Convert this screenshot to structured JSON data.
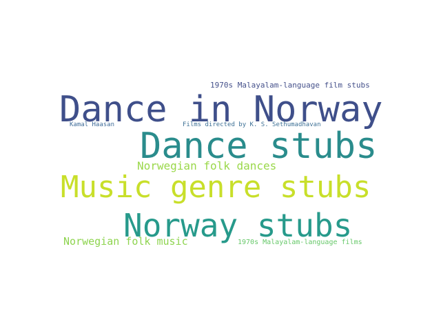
{
  "words": [
    {
      "key": "dance_in_norway",
      "text": "Dance in Norway",
      "color": "#3f4f8a"
    },
    {
      "key": "dance_stubs",
      "text": "Dance stubs",
      "color": "#2a8c8c"
    },
    {
      "key": "music_genre_stubs",
      "text": "Music genre stubs",
      "color": "#c8df2a"
    },
    {
      "key": "norway_stubs",
      "text": "Norway stubs",
      "color": "#279a8b"
    },
    {
      "key": "norwegian_folk_dances",
      "text": "Norwegian folk dances",
      "color": "#9ad84a"
    },
    {
      "key": "norwegian_folk_music",
      "text": "Norwegian folk music",
      "color": "#8ed44f"
    },
    {
      "key": "malayalam_film_stubs",
      "text": "1970s Malayalam-language film stubs",
      "color": "#44508a"
    },
    {
      "key": "kamal_haasan",
      "text": "Kamal Haasan",
      "color": "#3f6c99"
    },
    {
      "key": "sethumadhavan",
      "text": "Films directed by K. S. Sethumadhavan",
      "color": "#3e7196"
    },
    {
      "key": "malayalam_films",
      "text": "1970s Malayalam-language films",
      "color": "#67c86a"
    }
  ]
}
